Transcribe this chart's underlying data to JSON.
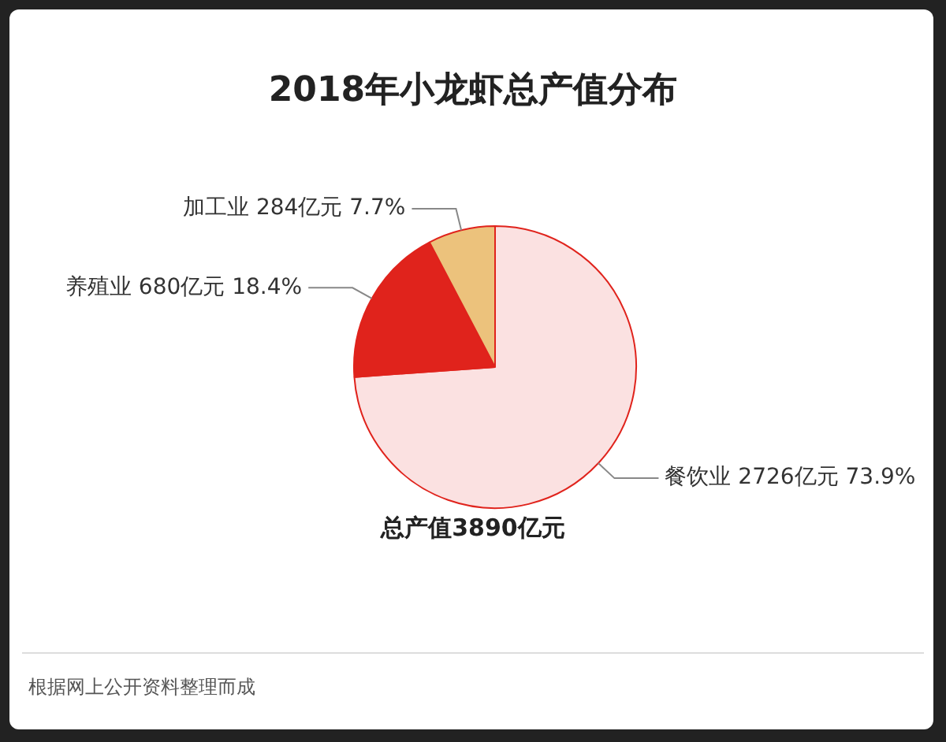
{
  "chart_data": {
    "type": "pie",
    "title": "2018年小龙虾总产值分布",
    "categories": [
      "餐饮业",
      "养殖业",
      "加工业"
    ],
    "values": [
      2726,
      680,
      284
    ],
    "value_labels": [
      "2726亿元 73.9%",
      "680亿元 18.4%",
      "284亿元 7.7%"
    ],
    "colors": [
      "#fbe1e1",
      "#e0231c",
      "#ecc27c"
    ],
    "legend": false,
    "annotations": [
      "总产值3890亿元",
      "根据网上公开资料整理而成"
    ]
  }
}
